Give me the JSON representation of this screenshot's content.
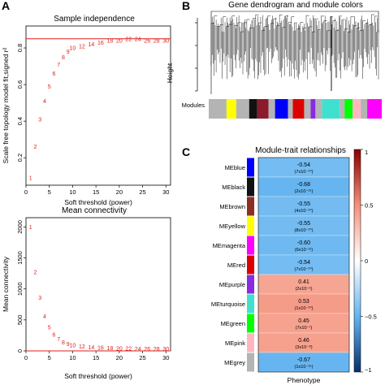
{
  "panels": {
    "a": "A",
    "b": "B",
    "c": "C"
  },
  "colors": {
    "threshold_line": "#e01b1b",
    "points": "#e01b1b",
    "positive": "#f4907a",
    "negative": "#64b4f0",
    "frame": "#000000"
  },
  "chart_data": [
    {
      "type": "scatter",
      "title": "Sample independence",
      "xlabel": "Soft threshold (power)",
      "ylabel": "Scale free topology model fit,signed r²",
      "xlim": [
        0,
        31
      ],
      "ylim": [
        0.05,
        0.92
      ],
      "xticks": [
        "0",
        "5",
        "10",
        "15",
        "20",
        "25",
        "30"
      ],
      "yticks": [
        "0.2",
        "0.4",
        "0.6",
        "0.8"
      ],
      "hline": 0.85,
      "points": [
        {
          "label": "1",
          "x": 1,
          "y": 0.09
        },
        {
          "label": "2",
          "x": 2,
          "y": 0.26
        },
        {
          "label": "3",
          "x": 3,
          "y": 0.41
        },
        {
          "label": "4",
          "x": 4,
          "y": 0.51
        },
        {
          "label": "5",
          "x": 5,
          "y": 0.59
        },
        {
          "label": "6",
          "x": 6,
          "y": 0.66
        },
        {
          "label": "7",
          "x": 7,
          "y": 0.71
        },
        {
          "label": "8",
          "x": 8,
          "y": 0.75
        },
        {
          "label": "9",
          "x": 9,
          "y": 0.78
        },
        {
          "label": "10",
          "x": 10,
          "y": 0.8
        },
        {
          "label": "12",
          "x": 12,
          "y": 0.81
        },
        {
          "label": "14",
          "x": 14,
          "y": 0.82
        },
        {
          "label": "16",
          "x": 16,
          "y": 0.83
        },
        {
          "label": "18",
          "x": 18,
          "y": 0.84
        },
        {
          "label": "20",
          "x": 20,
          "y": 0.84
        },
        {
          "label": "22",
          "x": 22,
          "y": 0.85
        },
        {
          "label": "24",
          "x": 24,
          "y": 0.85
        },
        {
          "label": "26",
          "x": 26,
          "y": 0.84
        },
        {
          "label": "28",
          "x": 28,
          "y": 0.84
        },
        {
          "label": "30",
          "x": 30,
          "y": 0.84
        }
      ]
    },
    {
      "type": "scatter",
      "title": "Mean connectivity",
      "xlabel": "Soft threshold (power)",
      "ylabel": "Mean connectivity",
      "xlim": [
        0,
        31
      ],
      "ylim": [
        0,
        2150
      ],
      "xticks": [
        "0",
        "5",
        "10",
        "15",
        "20",
        "25",
        "30"
      ],
      "yticks": [
        "0",
        "500",
        "1000",
        "1500",
        "2000"
      ],
      "hline": 0,
      "points": [
        {
          "label": "1",
          "x": 1,
          "y": 2000
        },
        {
          "label": "2",
          "x": 2,
          "y": 1270
        },
        {
          "label": "3",
          "x": 3,
          "y": 860
        },
        {
          "label": "4",
          "x": 4,
          "y": 560
        },
        {
          "label": "5",
          "x": 5,
          "y": 380
        },
        {
          "label": "6",
          "x": 6,
          "y": 260
        },
        {
          "label": "7",
          "x": 7,
          "y": 190
        },
        {
          "label": "8",
          "x": 8,
          "y": 140
        },
        {
          "label": "9",
          "x": 9,
          "y": 110
        },
        {
          "label": "10",
          "x": 10,
          "y": 90
        },
        {
          "label": "12",
          "x": 12,
          "y": 70
        },
        {
          "label": "14",
          "x": 14,
          "y": 60
        },
        {
          "label": "16",
          "x": 16,
          "y": 50
        },
        {
          "label": "18",
          "x": 18,
          "y": 45
        },
        {
          "label": "20",
          "x": 20,
          "y": 40
        },
        {
          "label": "22",
          "x": 22,
          "y": 38
        },
        {
          "label": "24",
          "x": 24,
          "y": 36
        },
        {
          "label": "26",
          "x": 26,
          "y": 35
        },
        {
          "label": "28",
          "x": 28,
          "y": 34
        },
        {
          "label": "30",
          "x": 30,
          "y": 33
        }
      ]
    },
    {
      "type": "dendrogram",
      "title": "Gene dendrogram and module colors",
      "ylabel": "Height",
      "color_row_label": "Modules",
      "module_colors": [
        "#b4b4b4",
        "#ffff00",
        "#b4b4b4",
        "#111111",
        "#8b1a2b",
        "#b4b4b4",
        "#0000ff",
        "#b4b4b4",
        "#dd0000",
        "#b4b4b4",
        "#8a2be2",
        "#b4b4b4",
        "#40e0d0",
        "#b4b4b4",
        "#00ff00",
        "#ffb6c1",
        "#b4b4b4",
        "#ff00ff"
      ]
    },
    {
      "type": "heatmap",
      "title": "Module-trait relationships",
      "xlabel": "Phenotype",
      "colorbar": {
        "range": [
          -1,
          1
        ],
        "ticks": [
          "1",
          "0.5",
          "0",
          "−0.5",
          "−1"
        ]
      },
      "rows": [
        {
          "module": "MEblue",
          "color": "#0000ff",
          "r": -0.54,
          "p": "(7x10⁻¹⁰)"
        },
        {
          "module": "MEblack",
          "color": "#111111",
          "r": -0.68,
          "p": "(2x10⁻¹⁵)"
        },
        {
          "module": "MEbrown",
          "color": "#8b2f22",
          "r": -0.55,
          "p": "(4x10⁻¹⁰)"
        },
        {
          "module": "MEyellow",
          "color": "#ffff00",
          "r": -0.55,
          "p": "(8x10⁻¹⁰)"
        },
        {
          "module": "MEmagenta",
          "color": "#ff00ff",
          "r": -0.6,
          "p": "(6x10⁻¹²)"
        },
        {
          "module": "MEred",
          "color": "#dd0000",
          "r": -0.54,
          "p": "(7x10⁻¹⁰)"
        },
        {
          "module": "MEpurple",
          "color": "#8a2be2",
          "r": 0.41,
          "p": "(2x10⁻⁶)"
        },
        {
          "module": "MEturquoise",
          "color": "#40e0d0",
          "r": 0.53,
          "p": "(1x10⁻¹⁰)"
        },
        {
          "module": "MEgreen",
          "color": "#00ff00",
          "r": 0.45,
          "p": "(7x10⁻⁷)"
        },
        {
          "module": "MEpink",
          "color": "#ffb6c1",
          "r": 0.46,
          "p": "(3x10⁻⁸)"
        },
        {
          "module": "MEgrey",
          "color": "#b4b4b4",
          "r": -0.67,
          "p": "(1x10⁻¹⁵)"
        }
      ]
    }
  ]
}
